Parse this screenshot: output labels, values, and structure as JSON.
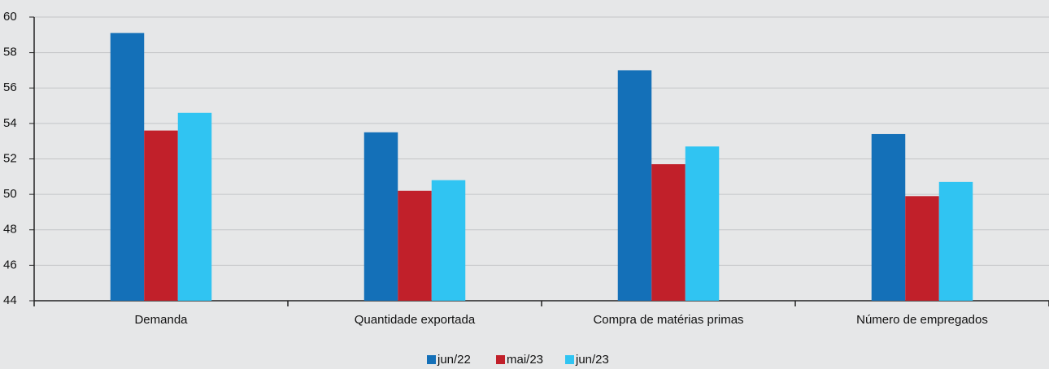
{
  "chart_data": {
    "type": "bar",
    "categories": [
      "Demanda",
      "Quantidade exportada",
      "Compra de matérias primas",
      "Número de empregados"
    ],
    "series": [
      {
        "name": "jun/22",
        "color": "#1470b8",
        "values": [
          59.1,
          53.5,
          57.0,
          53.4
        ]
      },
      {
        "name": "mai/23",
        "color": "#c1202a",
        "values": [
          53.6,
          50.2,
          51.7,
          49.9
        ]
      },
      {
        "name": "jun/23",
        "color": "#30c4f2",
        "values": [
          54.6,
          50.8,
          52.7,
          50.7
        ]
      }
    ],
    "ylim": [
      44,
      60
    ],
    "yticks": [
      44,
      46,
      48,
      50,
      52,
      54,
      56,
      58,
      60
    ],
    "grid": true
  }
}
